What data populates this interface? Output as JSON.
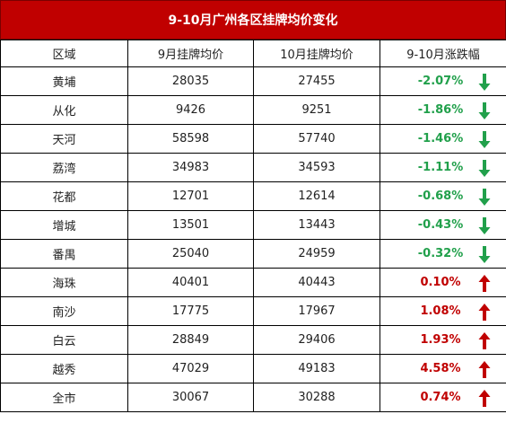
{
  "title": "9-10月广州各区挂牌均价变化",
  "headers": [
    "区域",
    "9月挂牌均价",
    "10月挂牌均价",
    "9-10月涨跌幅"
  ],
  "rows": [
    {
      "district": "黄埔",
      "sep": "28035",
      "oct": "27455",
      "change": "-2.07%",
      "direction": "down"
    },
    {
      "district": "从化",
      "sep": "9426",
      "oct": "9251",
      "change": "-1.86%",
      "direction": "down"
    },
    {
      "district": "天河",
      "sep": "58598",
      "oct": "57740",
      "change": "-1.46%",
      "direction": "down"
    },
    {
      "district": "荔湾",
      "sep": "34983",
      "oct": "34593",
      "change": "-1.11%",
      "direction": "down"
    },
    {
      "district": "花都",
      "sep": "12701",
      "oct": "12614",
      "change": "-0.68%",
      "direction": "down"
    },
    {
      "district": "增城",
      "sep": "13501",
      "oct": "13443",
      "change": "-0.43%",
      "direction": "down"
    },
    {
      "district": "番禺",
      "sep": "25040",
      "oct": "24959",
      "change": "-0.32%",
      "direction": "down"
    },
    {
      "district": "海珠",
      "sep": "40401",
      "oct": "40443",
      "change": "0.10%",
      "direction": "up"
    },
    {
      "district": "南沙",
      "sep": "17775",
      "oct": "17967",
      "change": "1.08%",
      "direction": "up"
    },
    {
      "district": "白云",
      "sep": "28849",
      "oct": "29406",
      "change": "1.93%",
      "direction": "up"
    },
    {
      "district": "越秀",
      "sep": "47029",
      "oct": "49183",
      "change": "4.58%",
      "direction": "up"
    },
    {
      "district": "全市",
      "sep": "30067",
      "oct": "30288",
      "change": "0.74%",
      "direction": "up"
    }
  ],
  "colors": {
    "title_bg": "#c00000",
    "up": "#c00000",
    "down": "#21a04b"
  },
  "icons": {
    "up": "arrow-up-icon",
    "down": "arrow-down-icon"
  }
}
